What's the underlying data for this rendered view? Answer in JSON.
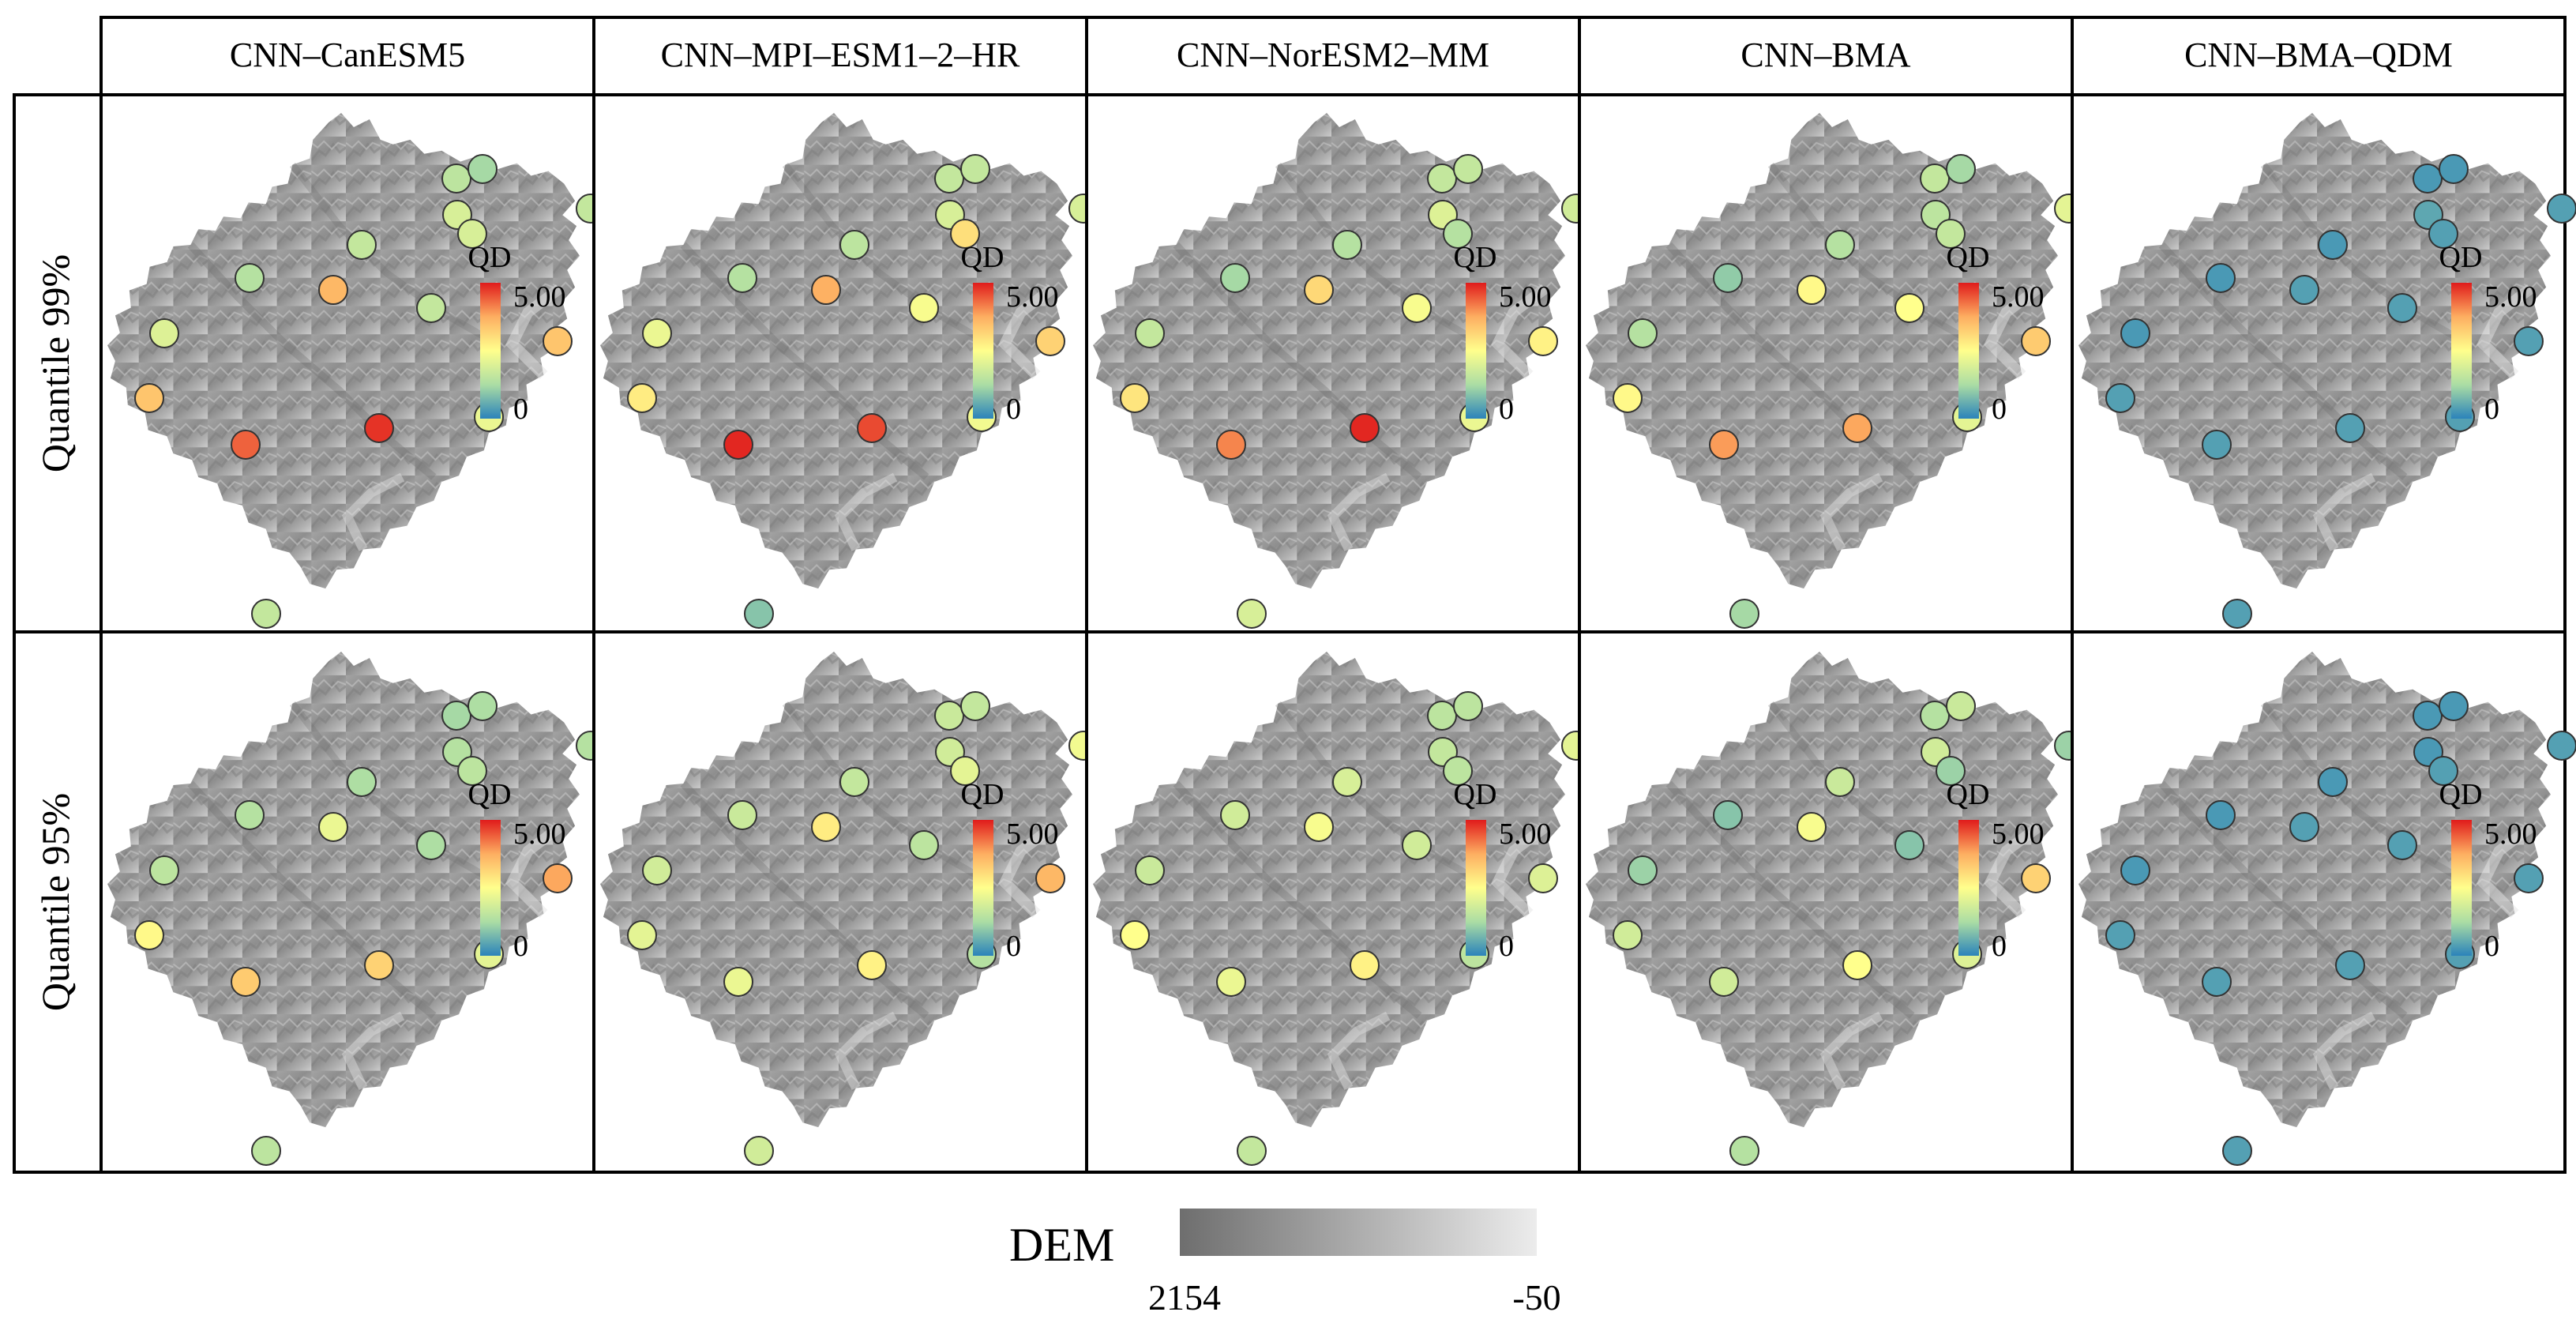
{
  "colors": {
    "grid": "#000000",
    "qd_low": "#2b83ba",
    "qd_mid": "#ffff8c",
    "qd_high": "#e01b1b",
    "dem_high": "#6e6e6e",
    "dem_low": "#e9e9e9"
  },
  "columns": [
    "CNN–CanESM5",
    "CNN–MPI–ESM1–2–HR",
    "CNN–NorESM2–MM",
    "CNN–BMA",
    "CNN–BMA–QDM"
  ],
  "rows": [
    "Quantile 99%",
    "Quantile 95%"
  ],
  "qd_legend": {
    "title": "QD",
    "max_label": "5.00",
    "min_label": "0",
    "min": 0,
    "max": 5
  },
  "dem_legend": {
    "title": "DEM",
    "left_label": "2154",
    "right_label": "-50"
  },
  "station_ids": [
    "s1",
    "s2",
    "s3",
    "s4",
    "s5",
    "s6",
    "s7",
    "s8",
    "s9",
    "s10",
    "s11",
    "s12",
    "s13",
    "s14",
    "s15",
    "s16",
    "s17"
  ],
  "qd_values": [
    [
      [
        2.0,
        1.4,
        1.6,
        1.5,
        1.2,
        1.9,
        1.9,
        3.4,
        3.6,
        1.6,
        1.6,
        3.4,
        2.9,
        4.4,
        4.8,
        2.2,
        1.6
      ],
      [
        2.2,
        1.4,
        1.5,
        1.6,
        1.6,
        1.9,
        3.0,
        2.8,
        3.7,
        2.4,
        1.9,
        3.2,
        2.1,
        4.9,
        4.6,
        2.3,
        0.9
      ],
      [
        1.6,
        1.2,
        1.4,
        1.6,
        1.6,
        2.0,
        1.4,
        2.9,
        3.1,
        2.4,
        1.8,
        2.7,
        2.2,
        4.1,
        4.9,
        2.2,
        1.9
      ],
      [
        1.4,
        1.0,
        1.4,
        1.6,
        1.2,
        1.5,
        1.6,
        2.6,
        2.6,
        2.5,
        2.1,
        3.3,
        2.0,
        3.9,
        3.8,
        2.1,
        1.2
      ],
      [
        0.3,
        0.3,
        0.3,
        0.3,
        0.3,
        0.5,
        0.4,
        0.4,
        0.4,
        0.4,
        0.4,
        0.4,
        0.4,
        0.4,
        0.4,
        0.4,
        0.4
      ]
    ],
    [
      [
        1.5,
        1.4,
        1.3,
        1.2,
        1.3,
        1.4,
        1.5,
        2.6,
        2.2,
        1.3,
        1.4,
        3.8,
        2.0,
        3.3,
        3.2,
        2.1,
        1.5
      ],
      [
        1.8,
        1.7,
        1.6,
        1.7,
        1.6,
        1.8,
        2.1,
        2.1,
        2.8,
        1.5,
        2.3,
        3.6,
        1.7,
        2.2,
        2.7,
        1.4,
        1.8
      ],
      [
        1.7,
        1.8,
        1.9,
        1.5,
        1.5,
        1.6,
        1.5,
        2.5,
        2.4,
        1.8,
        2.1,
        2.0,
        1.5,
        2.2,
        2.7,
        1.5,
        1.6
      ],
      [
        1.1,
        0.9,
        1.7,
        1.4,
        1.7,
        1.8,
        1.1,
        1.8,
        2.4,
        0.9,
        1.1,
        3.2,
        2.2,
        1.8,
        2.5,
        2.0,
        1.4
      ],
      [
        0.3,
        0.3,
        0.3,
        0.3,
        0.3,
        0.3,
        0.4,
        0.4,
        0.4,
        0.4,
        0.4,
        0.4,
        0.4,
        0.4,
        0.4,
        0.4,
        0.4
      ]
    ]
  ]
}
